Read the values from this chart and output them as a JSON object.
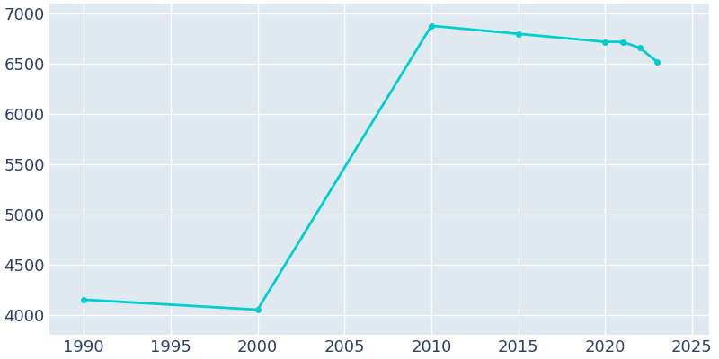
{
  "years": [
    1990,
    2000,
    2010,
    2015,
    2020,
    2021,
    2022,
    2023
  ],
  "population": [
    4150,
    4050,
    6880,
    6800,
    6720,
    6720,
    6660,
    6520
  ],
  "line_color": "#00CED1",
  "marker": "o",
  "marker_size": 4,
  "line_width": 2,
  "bg_color": "#e0e8f0",
  "plot_bg_color": "#e0e8f0",
  "outer_bg_color": "#ffffff",
  "grid_color": "#ffffff",
  "xlabel": "",
  "ylabel": "",
  "xlim": [
    1988,
    2026
  ],
  "ylim": [
    3800,
    7100
  ],
  "yticks": [
    4000,
    4500,
    5000,
    5500,
    6000,
    6500,
    7000
  ],
  "xticks": [
    1990,
    1995,
    2000,
    2005,
    2010,
    2015,
    2020,
    2025
  ],
  "tick_label_color": "#2d3f6b",
  "tick_fontsize": 13,
  "spine_visible": false
}
